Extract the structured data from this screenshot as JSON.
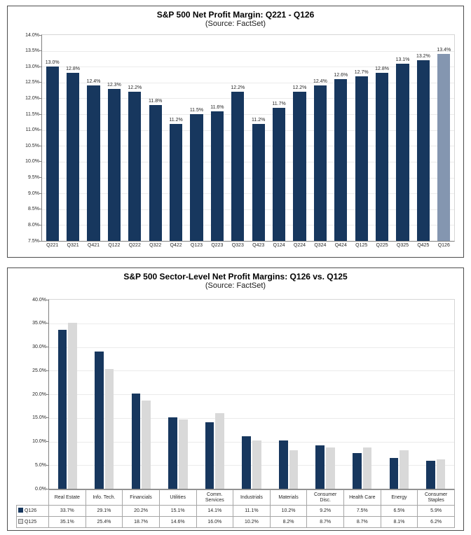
{
  "page": {
    "background": "#ffffff"
  },
  "chart_data": [
    {
      "type": "bar",
      "title": "S&P 500 Net Profit Margin: Q221 - Q126",
      "subtitle": "(Source: FactSet)",
      "categories": [
        "Q221",
        "Q321",
        "Q421",
        "Q122",
        "Q222",
        "Q322",
        "Q422",
        "Q123",
        "Q223",
        "Q323",
        "Q423",
        "Q124",
        "Q224",
        "Q324",
        "Q424",
        "Q125",
        "Q225",
        "Q325",
        "Q425",
        "Q126"
      ],
      "values": [
        13.0,
        12.8,
        12.4,
        12.3,
        12.2,
        11.8,
        11.2,
        11.5,
        11.6,
        12.2,
        11.2,
        11.7,
        12.2,
        12.4,
        12.6,
        12.7,
        12.8,
        13.1,
        13.2,
        13.4
      ],
      "ylim": [
        7.5,
        14.0
      ],
      "ytick_step": 0.5,
      "grid": true,
      "legend_position": "none",
      "bar_color": "#17375e",
      "estimate_bar_color": "#8496b0",
      "estimate_count": 1
    },
    {
      "type": "bar",
      "title": "S&P 500 Sector-Level Net Profit Margins: Q126 vs. Q125",
      "subtitle": "(Source: FactSet)",
      "categories": [
        "Real Estate",
        "Info. Tech.",
        "Financials",
        "Utilities",
        "Comm. Services",
        "Industrials",
        "Materials",
        "Consumer Disc.",
        "Health Care",
        "Energy",
        "Consumer Staples"
      ],
      "series": [
        {
          "name": "Q126",
          "color": "#17375e",
          "values": [
            33.7,
            29.1,
            20.2,
            15.1,
            14.1,
            11.1,
            10.2,
            9.2,
            7.5,
            6.5,
            5.9
          ]
        },
        {
          "name": "Q125",
          "color": "#d9d9d9",
          "values": [
            35.1,
            25.4,
            18.7,
            14.6,
            16.0,
            10.2,
            8.2,
            8.7,
            8.7,
            8.1,
            6.2
          ]
        }
      ],
      "ylim": [
        0,
        40
      ],
      "ytick_step": 5,
      "grid": true,
      "legend_position": "table",
      "data_table": true
    }
  ]
}
